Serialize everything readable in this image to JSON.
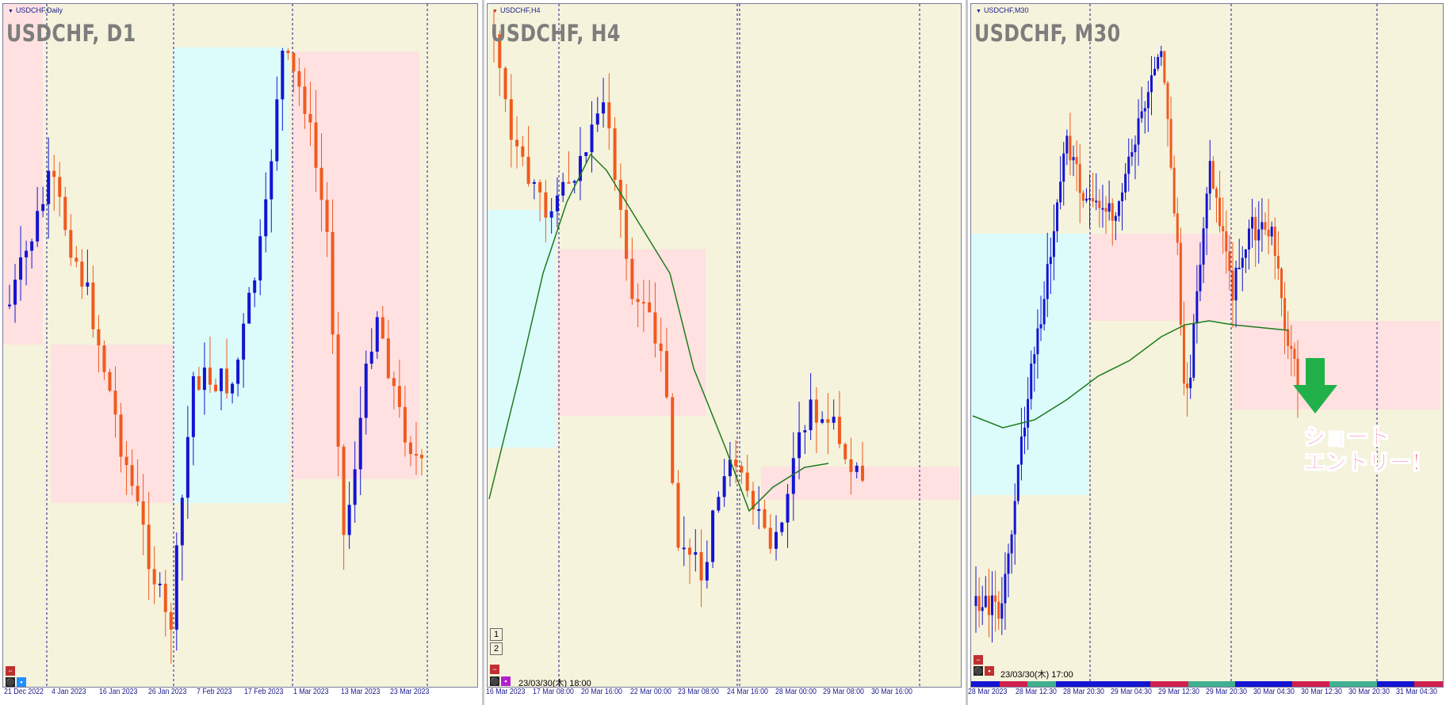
{
  "charts": [
    {
      "id": "d1",
      "small_title": "USDCHF,Daily",
      "big_title": "USDCHF, D1",
      "x_ticks": [
        "21 Dec 2022",
        "4 Jan 2023",
        "16 Jan 2023",
        "26 Jan 2023",
        "7 Feb 2023",
        "17 Feb 2023",
        "1 Mar 2023",
        "13 Mar 2023",
        "23 Mar 2023"
      ],
      "cursor_label": "",
      "zone_buttons": []
    },
    {
      "id": "h4",
      "small_title": "USDCHF,H4",
      "big_title": "USDCHF, H4",
      "x_ticks": [
        "16 Mar 2023",
        "17 Mar 08:00",
        "20 Mar 16:00",
        "22 Mar 00:00",
        "23 Mar 08:00",
        "24 Mar 16:00",
        "28 Mar 00:00",
        "29 Mar 08:00",
        "30 Mar 16:00"
      ],
      "cursor_label": "23/03/30(木) 18:00",
      "zone_buttons": [
        "1",
        "2"
      ]
    },
    {
      "id": "m30",
      "small_title": "USDCHF,M30",
      "big_title": "USDCHF, M30",
      "x_ticks": [
        "28 Mar 2023",
        "28 Mar 12:30",
        "28 Mar 20:30",
        "29 Mar 04:30",
        "29 Mar 12:30",
        "29 Mar 20:30",
        "30 Mar 04:30",
        "30 Mar 12:30",
        "30 Mar 20:30",
        "31 Mar 04:30"
      ],
      "cursor_label": "23/03/30(木) 17:00",
      "zone_buttons": []
    }
  ],
  "annotation": {
    "line1": "ショート",
    "line2": "エントリー！",
    "arrow": "down-arrow-icon"
  },
  "colors": {
    "background": "#f5f3dc",
    "bull_candle": "#1414d2",
    "bear_candle": "#f05a1e",
    "ma_line": "#1e7a1e",
    "zone_resistance": "#ffe1e1",
    "zone_support": "#dcfcfc",
    "annotation_text": "#e8276e",
    "annotation_arrow": "#22b04b"
  }
}
